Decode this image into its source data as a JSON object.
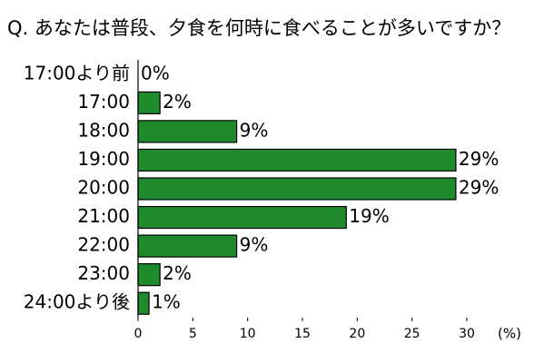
{
  "chart_data": {
    "type": "bar",
    "orientation": "horizontal",
    "title": "Q. あなたは普段、夕食を何時に食べることが多いですか？",
    "x_label": "(%)",
    "categories": [
      "17:00より前",
      "17:00",
      "18:00",
      "19:00",
      "20:00",
      "21:00",
      "22:00",
      "23:00",
      "24:00より後"
    ],
    "values": [
      0,
      2,
      9,
      29,
      29,
      19,
      9,
      2,
      1
    ],
    "value_labels": [
      "0%",
      "2%",
      "9%",
      "29%",
      "29%",
      "19%",
      "9%",
      "2%",
      "1%"
    ],
    "color": "#1f8a2c",
    "xlim": [
      0,
      30
    ],
    "xticks": [
      0,
      5,
      10,
      15,
      20,
      25,
      30
    ]
  }
}
